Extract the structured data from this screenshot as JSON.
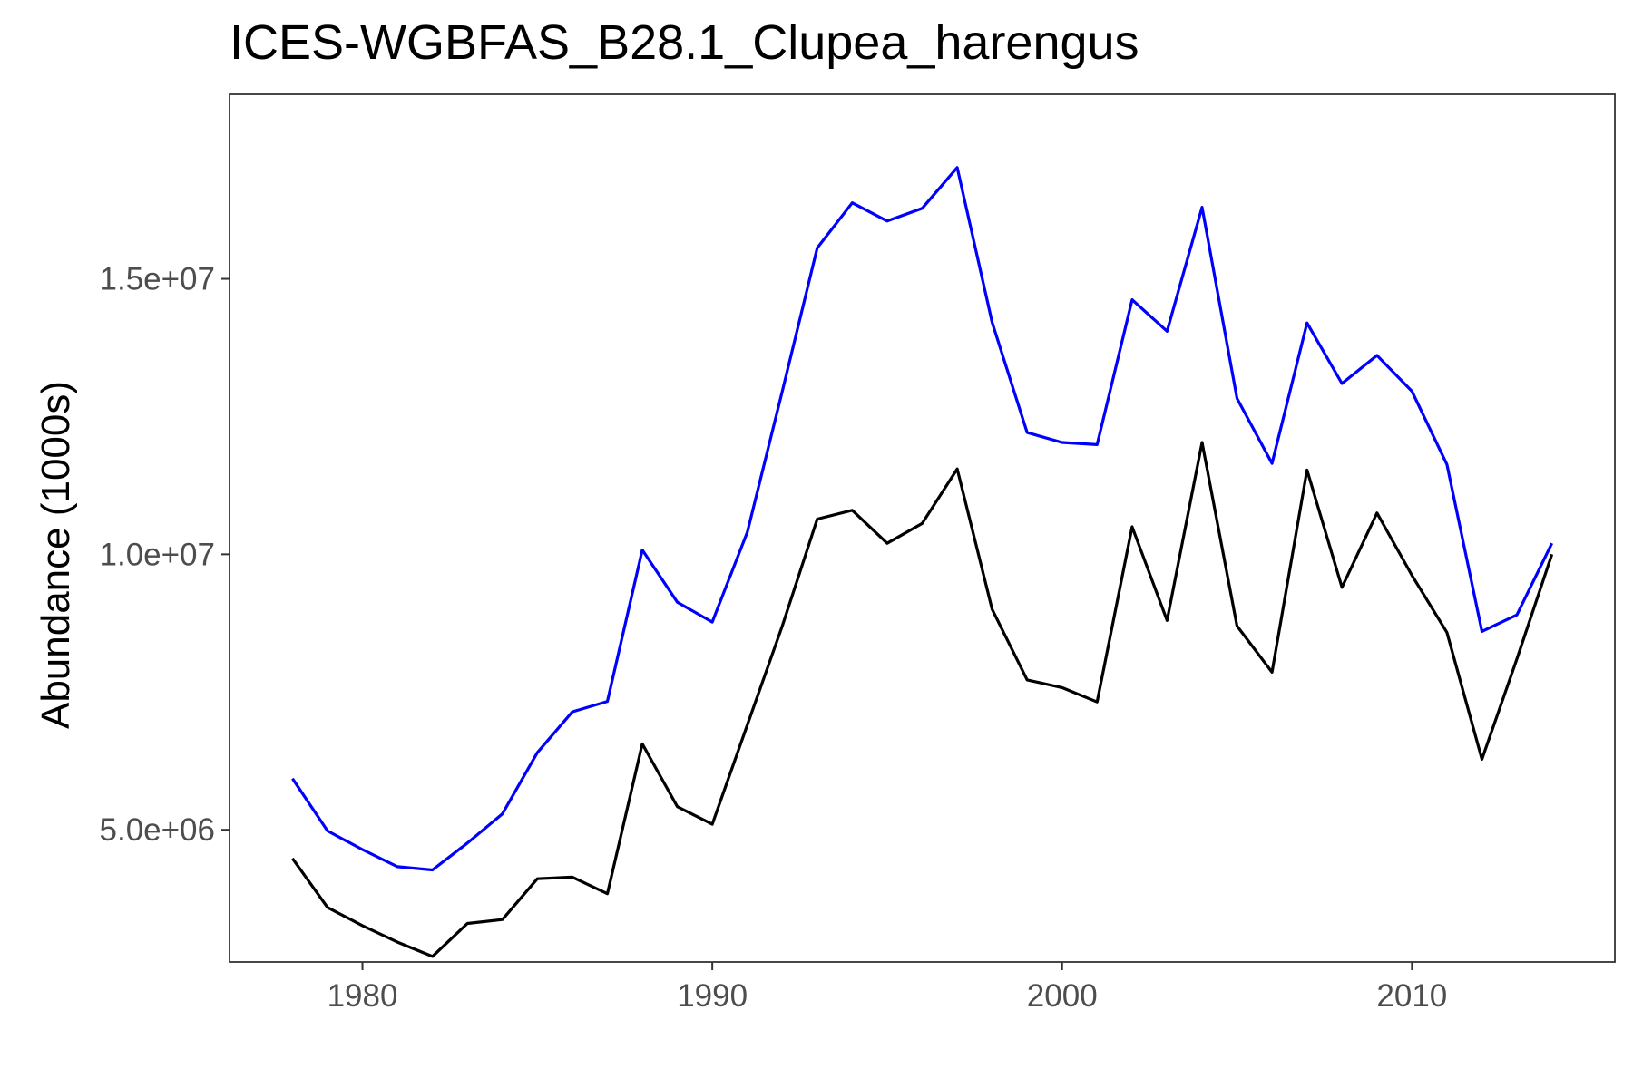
{
  "chart_data": {
    "type": "line",
    "title": "ICES-WGBFAS_B28.1_Clupea_harengus",
    "xlabel": "",
    "ylabel": "Abundance (1000s)",
    "xlim": [
      1976.2,
      2015.8
    ],
    "ylim": [
      2600000.0,
      18350000.0
    ],
    "x_ticks": [
      1980,
      1990,
      2000,
      2010
    ],
    "x_tick_labels": [
      "1980",
      "1990",
      "2000",
      "2010"
    ],
    "y_ticks": [
      5000000,
      10000000,
      15000000
    ],
    "y_tick_labels": [
      "5.0e+06",
      "1.0e+07",
      "1.5e+07"
    ],
    "grid": false,
    "x": [
      1978,
      1979,
      1980,
      1981,
      1982,
      1983,
      1984,
      1985,
      1986,
      1987,
      1988,
      1989,
      1990,
      1991,
      1992,
      1993,
      1994,
      1995,
      1996,
      1997,
      1998,
      1999,
      2000,
      2001,
      2002,
      2003,
      2004,
      2005,
      2006,
      2007,
      2008,
      2009,
      2010,
      2011,
      2012,
      2013,
      2014
    ],
    "series": [
      {
        "color": "#0000ff",
        "values": [
          5930000,
          4980000,
          4640000,
          4330000,
          4270000,
          4760000,
          5290000,
          6400000,
          7140000,
          7330000,
          10080000,
          9130000,
          8770000,
          10400000,
          12960000,
          15560000,
          16380000,
          16050000,
          16280000,
          17020000,
          14210000,
          12210000,
          12030000,
          11990000,
          14620000,
          14050000,
          16300000,
          12830000,
          11650000,
          14200000,
          13100000,
          13610000,
          12960000,
          11630000,
          8600000,
          8900000,
          10200000
        ]
      },
      {
        "color": "#000000",
        "values": [
          4480000,
          3590000,
          3260000,
          2960000,
          2700000,
          3300000,
          3370000,
          4110000,
          4140000,
          3840000,
          6560000,
          5420000,
          5100000,
          6900000,
          8700000,
          10640000,
          10800000,
          10200000,
          10560000,
          11550000,
          9000000,
          7720000,
          7580000,
          7320000,
          10500000,
          8800000,
          12030000,
          8700000,
          7860000,
          11530000,
          9400000,
          10750000,
          9620000,
          8580000,
          6280000,
          8100000,
          10000000
        ]
      }
    ]
  }
}
